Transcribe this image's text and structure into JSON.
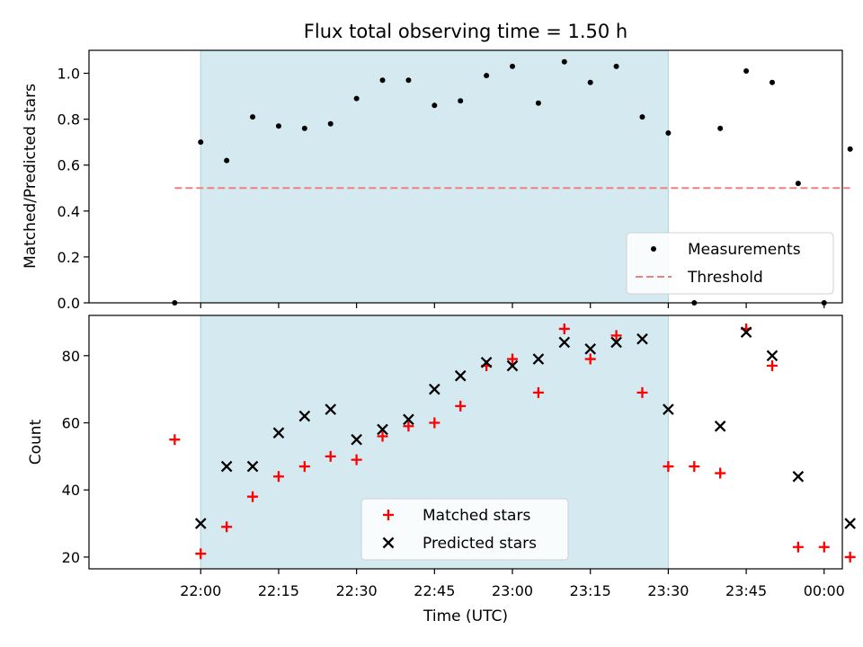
{
  "chart_data": [
    {
      "type": "scatter",
      "title": "Flux total observing time = 1.50 h",
      "ylabel": "Matched/Predicted stars",
      "ylim": [
        0,
        1.1
      ],
      "yticks": [
        0.0,
        0.2,
        0.4,
        0.6,
        0.8,
        1.0
      ],
      "ytick_labels": [
        "0.0",
        "0.2",
        "0.4",
        "0.6",
        "0.8",
        "1.0"
      ],
      "xlim_minutes_after_21_00": [
        38.5,
        183.5
      ],
      "shaded_interval": [
        "22:00",
        "23:30"
      ],
      "shade_color": "#d4eaf0",
      "legend_position": "lower right",
      "series": [
        {
          "name": "Measurements",
          "marker": "dot",
          "color": "#000000",
          "x": [
            "21:55",
            "22:00",
            "22:05",
            "22:10",
            "22:15",
            "22:20",
            "22:25",
            "22:30",
            "22:35",
            "22:40",
            "22:45",
            "22:50",
            "22:55",
            "23:00",
            "23:05",
            "23:10",
            "23:15",
            "23:20",
            "23:25",
            "23:30",
            "23:35",
            "23:40",
            "23:45",
            "23:50",
            "23:55",
            "00:00",
            "00:05"
          ],
          "values": [
            0.0,
            0.7,
            0.62,
            0.81,
            0.77,
            0.76,
            0.78,
            0.89,
            0.97,
            0.97,
            0.86,
            0.88,
            0.99,
            1.03,
            0.87,
            1.05,
            0.96,
            1.03,
            0.81,
            0.74,
            0.0,
            0.76,
            1.01,
            0.96,
            0.52,
            0.0,
            0.67
          ]
        },
        {
          "name": "Threshold",
          "marker": "dashed-line",
          "color": "#f08080",
          "x": [
            "21:55",
            "00:05"
          ],
          "values": [
            0.5,
            0.5
          ]
        }
      ]
    },
    {
      "type": "scatter",
      "xlabel": "Time (UTC)",
      "ylabel": "Count",
      "ylim": [
        16.5,
        92
      ],
      "yticks": [
        20,
        40,
        60,
        80
      ],
      "ytick_labels": [
        "20",
        "40",
        "60",
        "80"
      ],
      "xticks": [
        "22:00",
        "22:15",
        "22:30",
        "22:45",
        "23:00",
        "23:15",
        "23:30",
        "23:45",
        "00:00"
      ],
      "xlim_minutes_after_21_00": [
        38.5,
        183.5
      ],
      "shaded_interval": [
        "22:00",
        "23:30"
      ],
      "shade_color": "#d4eaf0",
      "legend_position": "lower center",
      "series": [
        {
          "name": "Matched stars",
          "marker": "plus",
          "color": "#ff0000",
          "x": [
            "21:55",
            "22:00",
            "22:05",
            "22:10",
            "22:15",
            "22:20",
            "22:25",
            "22:30",
            "22:35",
            "22:40",
            "22:45",
            "22:50",
            "22:55",
            "23:00",
            "23:05",
            "23:10",
            "23:15",
            "23:20",
            "23:25",
            "23:30",
            "23:35",
            "23:40",
            "23:45",
            "23:50",
            "23:55",
            "00:00",
            "00:05"
          ],
          "values": [
            55,
            21,
            29,
            38,
            44,
            47,
            50,
            49,
            56,
            59,
            60,
            65,
            77,
            79,
            69,
            88,
            79,
            86,
            69,
            47,
            47,
            45,
            88,
            77,
            23,
            23,
            20
          ]
        },
        {
          "name": "Predicted stars",
          "marker": "x",
          "color": "#000000",
          "x": [
            "22:00",
            "22:05",
            "22:10",
            "22:15",
            "22:20",
            "22:25",
            "22:30",
            "22:35",
            "22:40",
            "22:45",
            "22:50",
            "22:55",
            "23:00",
            "23:05",
            "23:10",
            "23:15",
            "23:20",
            "23:25",
            "23:30",
            "23:40",
            "23:45",
            "23:50",
            "23:55",
            "00:05"
          ],
          "values": [
            30,
            47,
            47,
            57,
            62,
            64,
            55,
            58,
            61,
            70,
            74,
            78,
            77,
            79,
            84,
            82,
            84,
            85,
            64,
            59,
            87,
            80,
            44,
            30
          ]
        }
      ]
    }
  ]
}
